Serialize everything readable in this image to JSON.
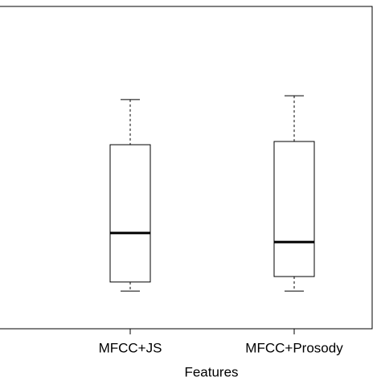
{
  "chart_data": {
    "type": "box",
    "xlabel": "Features",
    "categories": [
      "MFCC+JS",
      "MFCC+Prosody"
    ],
    "boxes": [
      {
        "min": 11.7,
        "q1": 14.5,
        "median": 29.7,
        "q3": 57.1,
        "max": 71.1
      },
      {
        "min": 11.7,
        "q1": 16.2,
        "median": 26.9,
        "q3": 58.1,
        "max": 72.3
      }
    ],
    "ylim": [
      0,
      100
    ]
  }
}
